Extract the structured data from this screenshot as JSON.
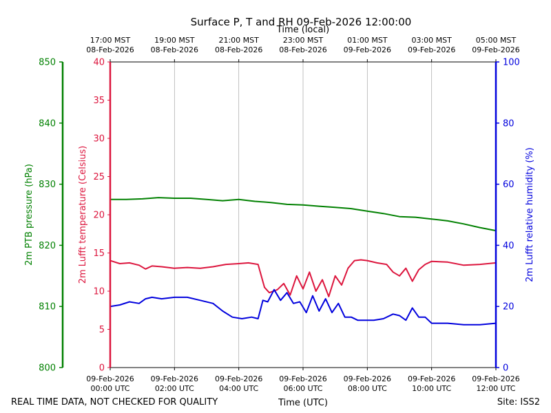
{
  "chart_data": {
    "type": "line",
    "title": "Surface P, T and RH 09-Feb-2026 12:00:00",
    "top_axis_title": "Time (local)",
    "xlabel": "Time (UTC)",
    "footer_left": "REAL TIME DATA, NOT CHECKED FOR QUALITY",
    "footer_right": "Site: ISS2",
    "x_range_hours": [
      0,
      12
    ],
    "x_ticks_utc": [
      {
        "hour": 0,
        "line1": "09-Feb-2026",
        "line2": "00:00 UTC"
      },
      {
        "hour": 2,
        "line1": "09-Feb-2026",
        "line2": "02:00 UTC"
      },
      {
        "hour": 4,
        "line1": "09-Feb-2026",
        "line2": "04:00 UTC"
      },
      {
        "hour": 6,
        "line1": "09-Feb-2026",
        "line2": "06:00 UTC"
      },
      {
        "hour": 8,
        "line1": "09-Feb-2026",
        "line2": "08:00 UTC"
      },
      {
        "hour": 10,
        "line1": "09-Feb-2026",
        "line2": "10:00 UTC"
      },
      {
        "hour": 12,
        "line1": "09-Feb-2026",
        "line2": "12:00 UTC"
      }
    ],
    "x_ticks_local": [
      {
        "hour": 0,
        "line1": "17:00 MST",
        "line2": "08-Feb-2026"
      },
      {
        "hour": 2,
        "line1": "19:00 MST",
        "line2": "08-Feb-2026"
      },
      {
        "hour": 4,
        "line1": "21:00 MST",
        "line2": "08-Feb-2026"
      },
      {
        "hour": 6,
        "line1": "23:00 MST",
        "line2": "08-Feb-2026"
      },
      {
        "hour": 8,
        "line1": "01:00 MST",
        "line2": "09-Feb-2026"
      },
      {
        "hour": 10,
        "line1": "03:00 MST",
        "line2": "09-Feb-2026"
      },
      {
        "hour": 12,
        "line1": "05:00 MST",
        "line2": "09-Feb-2026"
      }
    ],
    "axes": {
      "pressure": {
        "label": "2m PTB pressure (hPa)",
        "range": [
          800,
          850
        ],
        "ticks": [
          800,
          810,
          820,
          830,
          840,
          850
        ],
        "color": "#008000"
      },
      "temperature": {
        "label": "2m Lufft temperature (Celsius)",
        "range": [
          0,
          40
        ],
        "ticks": [
          0,
          5,
          10,
          15,
          20,
          25,
          30,
          35,
          40
        ],
        "color": "#dc143c"
      },
      "humidity": {
        "label": "2m Lufft relative humidity (%)",
        "range": [
          0,
          100
        ],
        "ticks": [
          0,
          20,
          40,
          60,
          80,
          100
        ],
        "color": "#0000dd"
      }
    },
    "series": [
      {
        "name": "2m PTB pressure",
        "axis": "pressure",
        "color": "#008000",
        "x": [
          0,
          0.5,
          1,
          1.5,
          2,
          2.5,
          3,
          3.5,
          4,
          4.5,
          5,
          5.5,
          6,
          6.5,
          7,
          7.5,
          8,
          8.5,
          9,
          9.5,
          10,
          10.5,
          11,
          11.5,
          12
        ],
        "values": [
          827.5,
          827.5,
          827.6,
          827.8,
          827.7,
          827.7,
          827.5,
          827.3,
          827.5,
          827.2,
          827.0,
          826.7,
          826.6,
          826.4,
          826.2,
          826.0,
          825.6,
          825.2,
          824.7,
          824.6,
          824.3,
          824.0,
          823.5,
          822.9,
          822.4
        ]
      },
      {
        "name": "2m Lufft temperature",
        "axis": "temperature",
        "color": "#dc143c",
        "x": [
          0,
          0.3,
          0.6,
          0.9,
          1.1,
          1.3,
          1.6,
          2,
          2.4,
          2.8,
          3.2,
          3.6,
          4,
          4.3,
          4.6,
          4.8,
          4.95,
          5.2,
          5.4,
          5.6,
          5.8,
          6.0,
          6.2,
          6.4,
          6.6,
          6.8,
          7.0,
          7.2,
          7.4,
          7.6,
          7.8,
          8.0,
          8.3,
          8.6,
          8.8,
          9.0,
          9.2,
          9.4,
          9.6,
          9.8,
          10.0,
          10.5,
          11.0,
          11.5,
          12.0
        ],
        "values": [
          14.0,
          13.6,
          13.7,
          13.4,
          12.9,
          13.3,
          13.2,
          13.0,
          13.1,
          13.0,
          13.2,
          13.5,
          13.6,
          13.7,
          13.5,
          10.5,
          9.8,
          10.2,
          11.0,
          9.5,
          12.0,
          10.3,
          12.5,
          10.0,
          11.5,
          9.3,
          12.0,
          10.8,
          13.0,
          14.0,
          14.1,
          14.0,
          13.7,
          13.5,
          12.5,
          12.0,
          13.0,
          11.3,
          12.8,
          13.5,
          13.9,
          13.8,
          13.4,
          13.5,
          13.7
        ]
      },
      {
        "name": "2m Lufft relative humidity",
        "axis": "humidity",
        "color": "#0000dd",
        "x": [
          0,
          0.3,
          0.6,
          0.9,
          1.1,
          1.3,
          1.6,
          2,
          2.4,
          2.8,
          3.2,
          3.5,
          3.8,
          4.1,
          4.4,
          4.6,
          4.75,
          4.9,
          5.1,
          5.3,
          5.5,
          5.7,
          5.9,
          6.1,
          6.3,
          6.5,
          6.7,
          6.9,
          7.1,
          7.3,
          7.5,
          7.7,
          7.9,
          8.2,
          8.5,
          8.8,
          9.0,
          9.2,
          9.4,
          9.6,
          9.8,
          10.0,
          10.5,
          11.0,
          11.5,
          12.0
        ],
        "values": [
          20.0,
          20.5,
          21.5,
          21.0,
          22.5,
          23.0,
          22.5,
          23.0,
          23.0,
          22.0,
          21.0,
          18.5,
          16.5,
          16.0,
          16.5,
          16.0,
          22.0,
          21.5,
          25.5,
          22.0,
          24.5,
          21.0,
          21.5,
          18.0,
          23.5,
          18.5,
          22.5,
          18.0,
          21.0,
          16.5,
          16.5,
          15.5,
          15.5,
          15.5,
          16.0,
          17.5,
          17.0,
          15.5,
          19.5,
          16.5,
          16.5,
          14.5,
          14.5,
          14.0,
          14.0,
          14.5
        ]
      }
    ]
  }
}
